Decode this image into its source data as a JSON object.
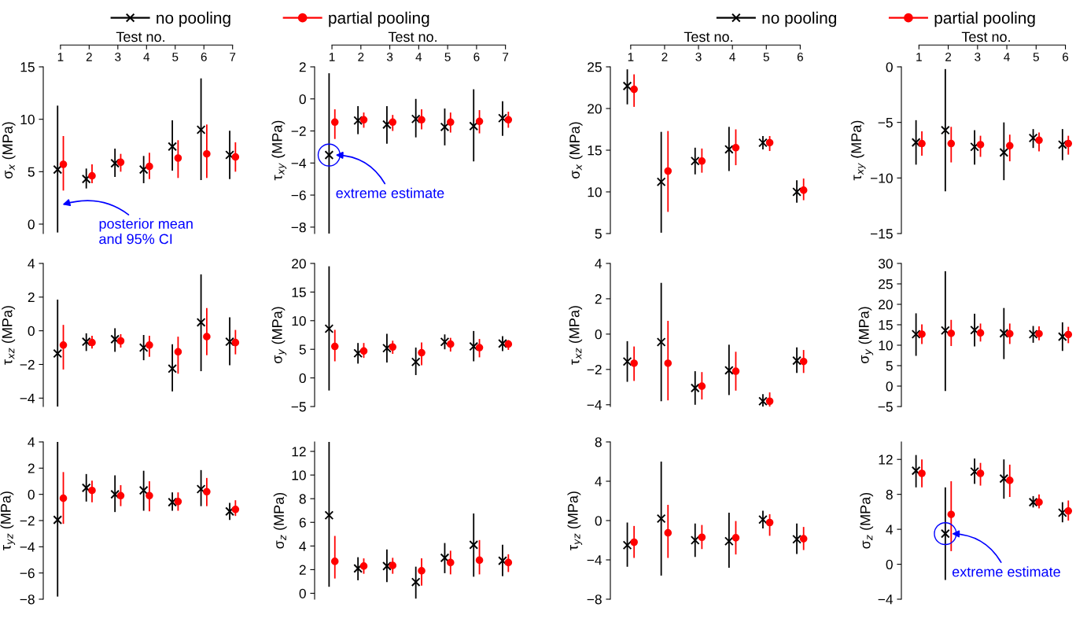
{
  "chart_data": [
    {
      "type": "scatter",
      "xlabel": "Test no.",
      "ylabel": "σ$_{x}$ (MPa)",
      "categories": [
        "1",
        "2",
        "3",
        "4",
        "5",
        "6",
        "7"
      ],
      "ylim": [
        -0.9,
        15
      ],
      "yticks": [
        0,
        5,
        10,
        15
      ],
      "grid": false,
      "annotations": [
        {
          "text": "posterior mean\nand 95% CI",
          "x": "1",
          "y": 1.8
        }
      ],
      "series": [
        {
          "color": "#000000",
          "marker": "cross",
          "values": [
            5.2,
            4.3,
            5.8,
            5.2,
            7.4,
            9.0,
            6.6
          ],
          "errors": [
            [
              -0.8,
              11.3
            ],
            [
              3.4,
              5.3
            ],
            [
              4.5,
              7.2
            ],
            [
              3.9,
              6.5
            ],
            [
              5.1,
              9.9
            ],
            [
              4.2,
              13.9
            ],
            [
              4.3,
              8.9
            ]
          ]
        },
        {
          "color": "#ff0000",
          "marker": "circle",
          "values": [
            5.7,
            4.6,
            5.9,
            5.5,
            6.3,
            6.7,
            6.4
          ],
          "errors": [
            [
              3.2,
              8.4
            ],
            [
              3.9,
              5.7
            ],
            [
              5.0,
              6.7
            ],
            [
              4.3,
              6.8
            ],
            [
              4.4,
              8.0
            ],
            [
              4.4,
              9.5
            ],
            [
              5.0,
              7.8
            ]
          ]
        }
      ]
    },
    {
      "type": "scatter",
      "xlabel": "Test no.",
      "ylabel": "τ$_{xy}$ (MPa)",
      "categories": [
        "1",
        "2",
        "3",
        "4",
        "5",
        "6",
        "7"
      ],
      "ylim": [
        -8.4,
        2
      ],
      "yticks": [
        -8,
        -6,
        -4,
        -2,
        0,
        2
      ],
      "legend": "top",
      "grid": false,
      "annotations": [
        {
          "text": "extreme estimate",
          "x": "1",
          "y": -3.5
        }
      ],
      "series": [
        {
          "name": "no pooling",
          "color": "#000000",
          "marker": "cross",
          "values": [
            -3.5,
            -1.35,
            -1.6,
            -1.25,
            -1.75,
            -1.7,
            -1.2
          ],
          "errors": [
            [
              -8.4,
              1.6
            ],
            [
              -2.2,
              -0.45
            ],
            [
              -2.8,
              -0.45
            ],
            [
              -2.4,
              0.0
            ],
            [
              -2.9,
              -0.6
            ],
            [
              -3.9,
              0.6
            ],
            [
              -2.3,
              -0.15
            ]
          ]
        },
        {
          "name": "partial pooling",
          "color": "#ff0000",
          "marker": "circle",
          "values": [
            -1.45,
            -1.3,
            -1.45,
            -1.3,
            -1.45,
            -1.4,
            -1.3
          ],
          "errors": [
            [
              -2.5,
              -0.65
            ],
            [
              -1.8,
              -0.85
            ],
            [
              -2.0,
              -1.0
            ],
            [
              -1.9,
              -0.65
            ],
            [
              -2.1,
              -0.85
            ],
            [
              -2.15,
              -0.7
            ],
            [
              -1.8,
              -0.8
            ]
          ]
        }
      ]
    },
    {
      "type": "scatter",
      "xlabel": "Test no.",
      "ylabel": "σ$_{x}$ (MPa)",
      "categories": [
        "1",
        "2",
        "3",
        "4",
        "5",
        "6"
      ],
      "ylim": [
        5,
        25
      ],
      "yticks": [
        5,
        10,
        15,
        20,
        25
      ],
      "grid": false,
      "series": [
        {
          "color": "#000000",
          "marker": "cross",
          "values": [
            22.7,
            11.2,
            13.7,
            15.1,
            15.9,
            10.0
          ],
          "errors": [
            [
              20.5,
              24.7
            ],
            [
              5.1,
              17.2
            ],
            [
              12.1,
              15.3
            ],
            [
              12.5,
              17.8
            ],
            [
              15.1,
              16.7
            ],
            [
              8.7,
              11.4
            ]
          ]
        },
        {
          "color": "#ff0000",
          "marker": "circle",
          "values": [
            22.3,
            12.5,
            13.7,
            15.3,
            15.9,
            10.2
          ],
          "errors": [
            [
              20.2,
              24.1
            ],
            [
              7.6,
              17.3
            ],
            [
              12.3,
              15.2
            ],
            [
              13.2,
              17.5
            ],
            [
              14.9,
              16.7
            ],
            [
              9.0,
              11.6
            ]
          ]
        }
      ]
    },
    {
      "type": "scatter",
      "xlabel": "Test no.",
      "ylabel": "τ$_{xy}$ (MPa)",
      "categories": [
        "1",
        "2",
        "3",
        "4",
        "5",
        "6"
      ],
      "ylim": [
        -15,
        0
      ],
      "yticks": [
        -15,
        -10,
        -5,
        0
      ],
      "legend": "top",
      "grid": false,
      "series": [
        {
          "name": "no pooling",
          "color": "#000000",
          "marker": "cross",
          "values": [
            -6.8,
            -5.7,
            -7.2,
            -7.7,
            -6.4,
            -7.0
          ],
          "errors": [
            [
              -8.8,
              -4.8
            ],
            [
              -11.2,
              -0.2
            ],
            [
              -8.8,
              -5.7
            ],
            [
              -10.2,
              -5.0
            ],
            [
              -7.3,
              -5.6
            ],
            [
              -8.4,
              -5.6
            ]
          ]
        },
        {
          "name": "partial pooling",
          "color": "#ff0000",
          "marker": "circle",
          "values": [
            -6.9,
            -6.9,
            -7.0,
            -7.1,
            -6.6,
            -6.9
          ],
          "errors": [
            [
              -8.0,
              -5.8
            ],
            [
              -8.6,
              -5.4
            ],
            [
              -8.1,
              -6.2
            ],
            [
              -8.5,
              -6.1
            ],
            [
              -7.6,
              -5.9
            ],
            [
              -7.9,
              -6.2
            ]
          ]
        }
      ]
    },
    {
      "type": "scatter",
      "ylabel": "τ$_{xz}$ (MPa)",
      "categories": [
        "1",
        "2",
        "3",
        "4",
        "5",
        "6",
        "7"
      ],
      "ylim": [
        -4.5,
        4
      ],
      "yticks": [
        -4,
        -2,
        0,
        2,
        4
      ],
      "tick_labels": "y",
      "grid": false,
      "series": [
        {
          "color": "#000000",
          "marker": "cross",
          "values": [
            -1.35,
            -0.65,
            -0.5,
            -1.0,
            -2.25,
            0.5,
            -0.65
          ],
          "errors": [
            [
              -4.5,
              1.85
            ],
            [
              -1.2,
              -0.15
            ],
            [
              -1.25,
              0.15
            ],
            [
              -1.75,
              -0.25
            ],
            [
              -3.6,
              -0.8
            ],
            [
              -2.4,
              3.35
            ],
            [
              -2.05,
              0.8
            ]
          ]
        },
        {
          "color": "#ff0000",
          "marker": "circle",
          "values": [
            -0.85,
            -0.7,
            -0.6,
            -0.85,
            -1.25,
            -0.35,
            -0.7
          ],
          "errors": [
            [
              -2.3,
              0.35
            ],
            [
              -1.05,
              -0.3
            ],
            [
              -1.0,
              -0.2
            ],
            [
              -1.55,
              -0.3
            ],
            [
              -2.55,
              -0.35
            ],
            [
              -1.45,
              1.35
            ],
            [
              -1.4,
              0.05
            ]
          ]
        }
      ]
    },
    {
      "type": "scatter",
      "ylabel": "σ$_{y}$ (MPa)",
      "categories": [
        "1",
        "2",
        "3",
        "4",
        "5",
        "6",
        "7"
      ],
      "ylim": [
        -5,
        20
      ],
      "yticks": [
        -5,
        0,
        5,
        10,
        15,
        20
      ],
      "tick_labels": "y",
      "grid": false,
      "series": [
        {
          "color": "#000000",
          "marker": "cross",
          "values": [
            8.6,
            4.3,
            5.2,
            2.8,
            6.3,
            5.5,
            6.0
          ],
          "errors": [
            [
              -2.2,
              19.5
            ],
            [
              2.5,
              6.1
            ],
            [
              2.7,
              7.7
            ],
            [
              0.5,
              5.3
            ],
            [
              5.0,
              7.6
            ],
            [
              2.9,
              8.2
            ],
            [
              4.7,
              7.3
            ]
          ]
        },
        {
          "color": "#ff0000",
          "marker": "circle",
          "values": [
            5.5,
            4.7,
            5.4,
            4.4,
            5.9,
            5.3,
            5.9
          ],
          "errors": [
            [
              2.9,
              8.4
            ],
            [
              3.5,
              6.1
            ],
            [
              4.2,
              6.5
            ],
            [
              2.2,
              6.2
            ],
            [
              4.6,
              7.0
            ],
            [
              3.6,
              6.8
            ],
            [
              4.9,
              6.6
            ]
          ]
        }
      ]
    },
    {
      "type": "scatter",
      "ylabel": "τ$_{xz}$ (MPa)",
      "categories": [
        "1",
        "2",
        "3",
        "4",
        "5",
        "6"
      ],
      "ylim": [
        -4.1,
        4
      ],
      "yticks": [
        -4,
        -2,
        0,
        2,
        4
      ],
      "tick_labels": "y",
      "grid": false,
      "series": [
        {
          "color": "#000000",
          "marker": "cross",
          "values": [
            -1.55,
            -0.45,
            -3.05,
            -2.05,
            -3.8,
            -1.5
          ],
          "errors": [
            [
              -2.7,
              -0.4
            ],
            [
              -3.8,
              2.9
            ],
            [
              -4.0,
              -2.1
            ],
            [
              -3.45,
              -0.6
            ],
            [
              -4.1,
              -3.4
            ],
            [
              -2.2,
              -0.75
            ]
          ]
        },
        {
          "color": "#ff0000",
          "marker": "circle",
          "values": [
            -1.65,
            -1.65,
            -2.95,
            -2.1,
            -3.8,
            -1.55
          ],
          "errors": [
            [
              -2.65,
              -0.7
            ],
            [
              -3.75,
              0.75
            ],
            [
              -3.7,
              -2.15
            ],
            [
              -3.2,
              -1.0
            ],
            [
              -4.1,
              -3.3
            ],
            [
              -2.2,
              -0.9
            ]
          ]
        }
      ]
    },
    {
      "type": "scatter",
      "ylabel": "σ$_{y}$ (MPa)",
      "categories": [
        "1",
        "2",
        "3",
        "4",
        "5",
        "6"
      ],
      "ylim": [
        -5,
        30
      ],
      "yticks": [
        -5,
        0,
        5,
        10,
        15,
        20,
        25,
        30
      ],
      "tick_labels": "y",
      "grid": false,
      "series": [
        {
          "color": "#000000",
          "marker": "cross",
          "values": [
            12.7,
            13.6,
            13.7,
            12.9,
            12.7,
            12.1
          ],
          "errors": [
            [
              7.4,
              17.8
            ],
            [
              -1.2,
              28.1
            ],
            [
              9.7,
              17.7
            ],
            [
              6.6,
              19.1
            ],
            [
              10.6,
              14.7
            ],
            [
              8.6,
              15.6
            ]
          ]
        },
        {
          "color": "#ff0000",
          "marker": "circle",
          "values": [
            12.7,
            12.9,
            13.0,
            12.8,
            12.8,
            12.6
          ],
          "errors": [
            [
              10.3,
              15.1
            ],
            [
              9.8,
              16.2
            ],
            [
              10.9,
              15.3
            ],
            [
              10.3,
              15.3
            ],
            [
              11.2,
              14.6
            ],
            [
              10.5,
              14.5
            ]
          ]
        }
      ]
    },
    {
      "type": "scatter",
      "ylabel": "τ$_{yz}$ (MPa)",
      "categories": [
        "1",
        "2",
        "3",
        "4",
        "5",
        "6",
        "7"
      ],
      "ylim": [
        -8,
        4
      ],
      "yticks": [
        -8,
        -6,
        -4,
        -2,
        0,
        2,
        4
      ],
      "tick_labels": "y",
      "grid": false,
      "series": [
        {
          "color": "#000000",
          "marker": "cross",
          "values": [
            -1.95,
            0.5,
            0.0,
            0.3,
            -0.6,
            0.4,
            -1.3
          ],
          "errors": [
            [
              -7.8,
              4.0
            ],
            [
              -0.55,
              1.55
            ],
            [
              -1.35,
              1.45
            ],
            [
              -1.25,
              1.8
            ],
            [
              -1.25,
              0.15
            ],
            [
              -0.9,
              1.85
            ],
            [
              -1.95,
              -0.65
            ]
          ]
        },
        {
          "color": "#ff0000",
          "marker": "circle",
          "values": [
            -0.3,
            0.3,
            -0.1,
            -0.1,
            -0.55,
            0.2,
            -1.15
          ],
          "errors": [
            [
              -2.25,
              1.7
            ],
            [
              -0.6,
              1.05
            ],
            [
              -0.9,
              0.7
            ],
            [
              -1.3,
              1.0
            ],
            [
              -1.25,
              0.15
            ],
            [
              -0.9,
              1.25
            ],
            [
              -1.65,
              -0.45
            ]
          ]
        }
      ]
    },
    {
      "type": "scatter",
      "ylabel": "σ$_{z}$ (MPa)",
      "categories": [
        "1",
        "2",
        "3",
        "4",
        "5",
        "6",
        "7"
      ],
      "ylim": [
        -0.5,
        12.8
      ],
      "yticks": [
        0,
        2,
        4,
        6,
        8,
        10,
        12
      ],
      "tick_labels": "y",
      "grid": false,
      "series": [
        {
          "color": "#000000",
          "marker": "cross",
          "values": [
            6.6,
            2.1,
            2.3,
            0.95,
            3.0,
            4.1,
            2.75
          ],
          "errors": [
            [
              0.55,
              12.8
            ],
            [
              1.1,
              3.05
            ],
            [
              0.95,
              3.7
            ],
            [
              -0.45,
              2.25
            ],
            [
              1.7,
              4.25
            ],
            [
              1.4,
              6.75
            ],
            [
              1.45,
              4.1
            ]
          ]
        },
        {
          "color": "#ff0000",
          "marker": "circle",
          "values": [
            2.7,
            2.3,
            2.35,
            1.9,
            2.6,
            2.8,
            2.6
          ],
          "errors": [
            [
              1.25,
              4.85
            ],
            [
              1.65,
              2.95
            ],
            [
              1.65,
              3.0
            ],
            [
              0.65,
              2.95
            ],
            [
              1.6,
              3.6
            ],
            [
              1.6,
              4.5
            ],
            [
              1.8,
              3.3
            ]
          ]
        }
      ]
    },
    {
      "type": "scatter",
      "ylabel": "τ$_{yz}$ (MPa)",
      "categories": [
        "1",
        "2",
        "3",
        "4",
        "5",
        "6"
      ],
      "ylim": [
        -8,
        8
      ],
      "yticks": [
        -8,
        -4,
        0,
        4,
        8
      ],
      "tick_labels": "y",
      "grid": false,
      "series": [
        {
          "color": "#000000",
          "marker": "cross",
          "values": [
            -2.5,
            0.2,
            -2.0,
            -2.1,
            0.1,
            -1.9
          ],
          "errors": [
            [
              -4.7,
              -0.2
            ],
            [
              -5.6,
              6.0
            ],
            [
              -3.7,
              -0.3
            ],
            [
              -4.8,
              0.8
            ],
            [
              -0.8,
              1.0
            ],
            [
              -3.4,
              -0.3
            ]
          ]
        },
        {
          "color": "#ff0000",
          "marker": "circle",
          "values": [
            -2.2,
            -1.25,
            -1.7,
            -1.75,
            -0.2,
            -1.85
          ],
          "errors": [
            [
              -3.8,
              -0.55
            ],
            [
              -3.8,
              1.6
            ],
            [
              -2.9,
              -0.45
            ],
            [
              -3.45,
              -0.05
            ],
            [
              -1.55,
              0.65
            ],
            [
              -3.0,
              -0.65
            ]
          ]
        }
      ]
    },
    {
      "type": "scatter",
      "ylabel": "σ$_{z}$ (MPa)",
      "categories": [
        "1",
        "2",
        "3",
        "4",
        "5",
        "6"
      ],
      "ylim": [
        -4,
        14
      ],
      "yticks": [
        -4,
        0,
        4,
        8,
        12
      ],
      "tick_labels": "y",
      "grid": false,
      "annotations": [
        {
          "text": "extreme estimate",
          "x": "2",
          "y": 3.5
        }
      ],
      "series": [
        {
          "color": "#000000",
          "marker": "cross",
          "values": [
            10.7,
            3.5,
            10.6,
            9.8,
            7.1,
            5.9
          ],
          "errors": [
            [
              8.8,
              12.5
            ],
            [
              -1.8,
              8.8
            ],
            [
              9.2,
              12.1
            ],
            [
              7.5,
              12.0
            ],
            [
              6.5,
              7.8
            ],
            [
              4.8,
              7.1
            ]
          ]
        },
        {
          "color": "#ff0000",
          "marker": "circle",
          "values": [
            10.4,
            5.7,
            10.4,
            9.6,
            7.1,
            6.1
          ],
          "errors": [
            [
              8.8,
              12.0
            ],
            [
              1.5,
              9.5
            ],
            [
              9.0,
              11.6
            ],
            [
              7.7,
              11.4
            ],
            [
              6.4,
              8.0
            ],
            [
              5.0,
              7.3
            ]
          ]
        }
      ]
    }
  ]
}
